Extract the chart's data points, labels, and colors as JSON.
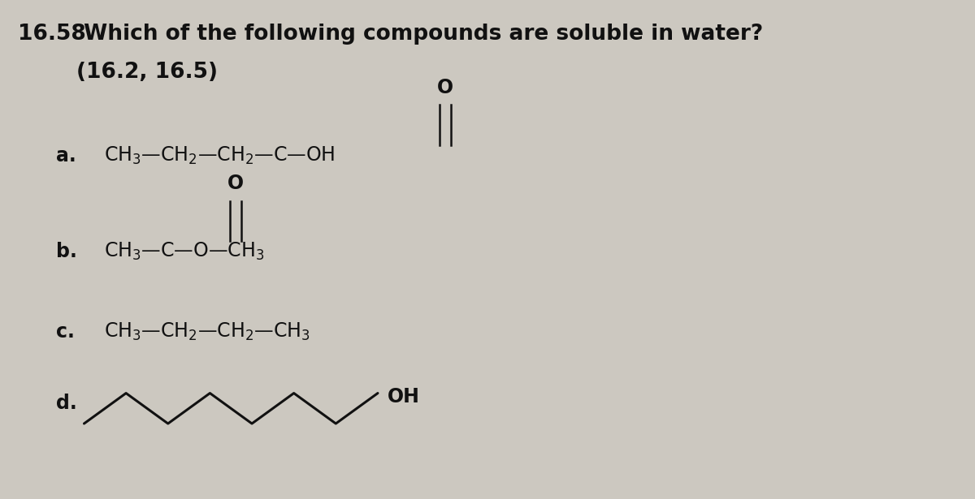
{
  "background_color": "#ccc8c0",
  "fig_width": 12.0,
  "fig_height": 6.15,
  "dpi": 100,
  "text_color": "#111111",
  "title_bold": "16.58",
  "title_rest": " Which of the following compounds are soluble in water?",
  "subtitle": "(16.2, 16.5)",
  "font_size_title": 19,
  "font_size_body": 17,
  "label_a": "a.",
  "label_b": "b.",
  "label_c": "c.",
  "label_d": "d."
}
